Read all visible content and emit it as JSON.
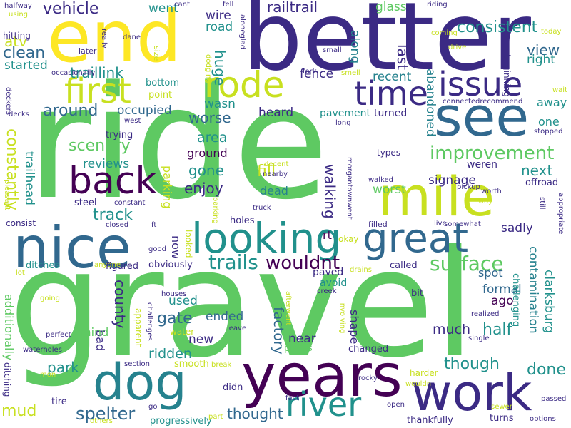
{
  "colors": {
    "dark_purple": "#440154",
    "indigo": "#3b2a84",
    "blue": "#31688e",
    "teal": "#21918c",
    "sea": "#26828e",
    "green": "#5ec962",
    "lime": "#c8e020",
    "yellow": "#fde725"
  },
  "words": [
    {
      "text": "ride"
    },
    {
      "text": "gravel"
    },
    {
      "text": "better"
    },
    {
      "text": "end"
    },
    {
      "text": "years"
    },
    {
      "text": "nice"
    },
    {
      "text": "mile"
    },
    {
      "text": "work"
    },
    {
      "text": "dog"
    },
    {
      "text": "see"
    },
    {
      "text": "looking"
    },
    {
      "text": "great"
    },
    {
      "text": "back"
    },
    {
      "text": "river"
    },
    {
      "text": "rode"
    },
    {
      "text": "first"
    },
    {
      "text": "time"
    },
    {
      "text": "issue"
    },
    {
      "text": "improvement"
    },
    {
      "text": "trails"
    },
    {
      "text": "surface"
    },
    {
      "text": "wouldnt"
    },
    {
      "text": "spelter"
    },
    {
      "text": "railtrail"
    },
    {
      "text": "consistent"
    },
    {
      "text": "vehicle"
    },
    {
      "text": "clean"
    },
    {
      "text": "scenery"
    },
    {
      "text": "track"
    },
    {
      "text": "around"
    },
    {
      "text": "traillink"
    },
    {
      "text": "occupied"
    },
    {
      "text": "worse"
    },
    {
      "text": "constantly"
    },
    {
      "text": "half"
    },
    {
      "text": "though"
    },
    {
      "text": "done"
    },
    {
      "text": "fill"
    },
    {
      "text": "enjoy"
    },
    {
      "text": "gone"
    },
    {
      "text": "next"
    },
    {
      "text": "walking"
    },
    {
      "text": "mud"
    },
    {
      "text": "thought"
    },
    {
      "text": "park"
    },
    {
      "text": "ridden"
    },
    {
      "text": "gate"
    },
    {
      "text": "factory"
    },
    {
      "text": "county"
    },
    {
      "text": "contamination"
    },
    {
      "text": "clarksburg"
    },
    {
      "text": "signage"
    },
    {
      "text": "worst"
    },
    {
      "text": "much"
    },
    {
      "text": "abandoned"
    },
    {
      "text": "along"
    },
    {
      "text": "last"
    },
    {
      "text": "huge"
    },
    {
      "text": "atv"
    },
    {
      "text": "view"
    },
    {
      "text": "right"
    },
    {
      "text": "glass"
    },
    {
      "text": "started"
    },
    {
      "text": "wire"
    },
    {
      "text": "road"
    },
    {
      "text": "went"
    },
    {
      "text": "fence"
    },
    {
      "text": "recent"
    },
    {
      "text": "heard"
    },
    {
      "text": "pavement"
    },
    {
      "text": "turned"
    },
    {
      "text": "area"
    },
    {
      "text": "ground"
    },
    {
      "text": "new"
    },
    {
      "text": "reviews"
    },
    {
      "text": "parking"
    },
    {
      "text": "trailhead"
    },
    {
      "text": "sadly"
    },
    {
      "text": "now"
    },
    {
      "text": "used"
    },
    {
      "text": "ended"
    },
    {
      "text": "near"
    },
    {
      "text": "formal"
    },
    {
      "text": "ago"
    },
    {
      "text": "spot"
    },
    {
      "text": "shape"
    },
    {
      "text": "bad"
    },
    {
      "text": "mind"
    },
    {
      "text": "additionally"
    },
    {
      "text": "rt"
    },
    {
      "text": "dead"
    },
    {
      "text": "weren"
    },
    {
      "text": "one"
    },
    {
      "text": "away"
    },
    {
      "text": "wasn"
    },
    {
      "text": "steel"
    },
    {
      "text": "trying"
    },
    {
      "text": "bottom"
    },
    {
      "text": "point"
    },
    {
      "text": "offroad"
    },
    {
      "text": "holes"
    },
    {
      "text": "figured"
    },
    {
      "text": "obviously"
    },
    {
      "text": "ditches"
    },
    {
      "text": "paved"
    },
    {
      "text": "avoid"
    },
    {
      "text": "called"
    },
    {
      "text": "challenging"
    },
    {
      "text": "bit"
    },
    {
      "text": "changed"
    },
    {
      "text": "plates"
    },
    {
      "text": "smooth"
    },
    {
      "text": "tire"
    },
    {
      "text": "didn"
    },
    {
      "text": "progressively"
    },
    {
      "text": "thankfully"
    },
    {
      "text": "turns"
    },
    {
      "text": "harder"
    },
    {
      "text": "ditching"
    },
    {
      "text": "apparent"
    },
    {
      "text": "water"
    },
    {
      "text": "looked"
    },
    {
      "text": "okay"
    },
    {
      "text": "types"
    },
    {
      "text": "walked"
    },
    {
      "text": "pickup"
    },
    {
      "text": "morgantownwent"
    },
    {
      "text": "filled"
    },
    {
      "text": "live"
    },
    {
      "text": "somewhat"
    },
    {
      "text": "appropriate"
    },
    {
      "text": "beginning"
    },
    {
      "text": "stopped"
    },
    {
      "text": "wait"
    },
    {
      "text": "connectedrecommend"
    },
    {
      "text": "fork"
    },
    {
      "text": "smell"
    },
    {
      "text": "long"
    },
    {
      "text": "small"
    },
    {
      "text": "drive"
    },
    {
      "text": "coming"
    },
    {
      "text": "today"
    },
    {
      "text": "riding"
    },
    {
      "text": "cant"
    },
    {
      "text": "fell"
    },
    {
      "text": "aloneglad"
    },
    {
      "text": "dodging"
    },
    {
      "text": "dane"
    },
    {
      "text": "later"
    },
    {
      "text": "size"
    },
    {
      "text": "really"
    },
    {
      "text": "using"
    },
    {
      "text": "halfway"
    },
    {
      "text": "hitting"
    },
    {
      "text": "occasionally"
    },
    {
      "text": "west"
    },
    {
      "text": "decks"
    },
    {
      "text": "deckers"
    },
    {
      "text": "pleasant"
    },
    {
      "text": "consist"
    },
    {
      "text": "lot"
    },
    {
      "text": "constant"
    },
    {
      "text": "closed"
    },
    {
      "text": "ft"
    },
    {
      "text": "good"
    },
    {
      "text": "anyone"
    },
    {
      "text": "barking"
    },
    {
      "text": "truck"
    },
    {
      "text": "decent"
    },
    {
      "text": "nearby"
    },
    {
      "text": "going"
    },
    {
      "text": "perfect"
    },
    {
      "text": "waterholes"
    },
    {
      "text": "houses"
    },
    {
      "text": "challenges"
    },
    {
      "text": "afterwent"
    },
    {
      "text": "creek"
    },
    {
      "text": "leave"
    },
    {
      "text": "involving"
    },
    {
      "text": "drains"
    },
    {
      "text": "realized"
    },
    {
      "text": "single"
    },
    {
      "text": "worth"
    },
    {
      "text": "way"
    },
    {
      "text": "still"
    },
    {
      "text": "mon"
    },
    {
      "text": "section"
    },
    {
      "text": "break"
    },
    {
      "text": "rocky"
    },
    {
      "text": "wouldn"
    },
    {
      "text": "go"
    },
    {
      "text": "fact"
    },
    {
      "text": "open"
    },
    {
      "text": "sewer"
    },
    {
      "text": "passed"
    },
    {
      "text": "others"
    },
    {
      "text": "part"
    },
    {
      "text": "options"
    }
  ]
}
